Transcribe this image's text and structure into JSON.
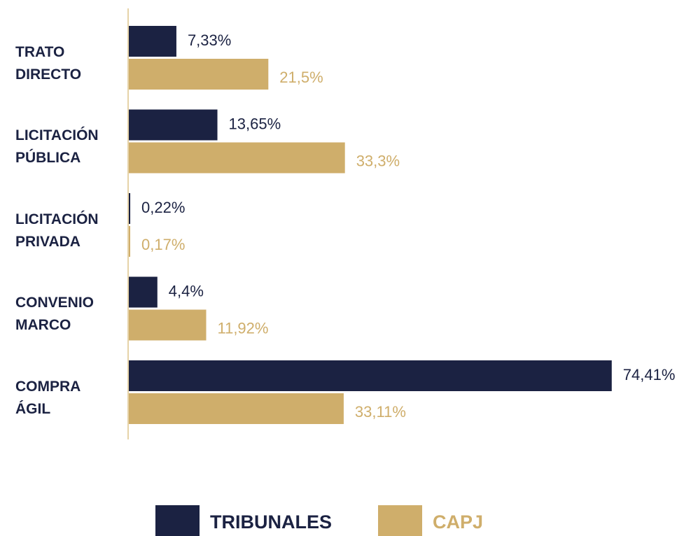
{
  "chart_data": {
    "type": "hbar",
    "categories": [
      "TRATO DIRECTO",
      "LICITACIÓN PÚBLICA",
      "LICITACIÓN PRIVADA",
      "CONVENIO MARCO",
      "COMPRA ÁGIL"
    ],
    "series": [
      {
        "name": "TRIBUNALES",
        "color": "#1b2242",
        "values": [
          7.33,
          13.65,
          0.22,
          4.4,
          74.41
        ],
        "value_labels": [
          "7,33%",
          "13,65%",
          "0,22%",
          "4,4%",
          "74,41%"
        ]
      },
      {
        "name": "CAPJ",
        "color": "#cfae6b",
        "values": [
          21.5,
          33.3,
          0.17,
          11.92,
          33.11
        ],
        "value_labels": [
          "21,5%",
          "33,3%",
          "0,17%",
          "11,92%",
          "33,11%"
        ]
      }
    ],
    "legend": "bottom"
  }
}
